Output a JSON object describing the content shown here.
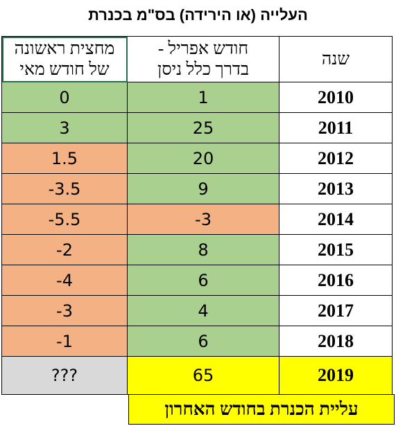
{
  "title": "העלייה (או הירידה) בס\"מ בכנרת",
  "headers": {
    "may": [
      "מחצית ראשונה",
      "של חודש מאי"
    ],
    "april": [
      "חודש אפריל -",
      "בדרך כלל ניסן"
    ],
    "year": "שנה"
  },
  "rows": [
    {
      "year": "2010",
      "april": "1",
      "may": "0",
      "april_color": "green",
      "may_color": "green"
    },
    {
      "year": "2011",
      "april": "25",
      "may": "3",
      "april_color": "green",
      "may_color": "green"
    },
    {
      "year": "2012",
      "april": "20",
      "may": "1.5",
      "april_color": "green",
      "may_color": "orange"
    },
    {
      "year": "2013",
      "april": "9",
      "may": "-3.5",
      "april_color": "green",
      "may_color": "orange"
    },
    {
      "year": "2014",
      "april": "-3",
      "may": "-5.5",
      "april_color": "orange",
      "may_color": "orange"
    },
    {
      "year": "2015",
      "april": "8",
      "may": "-2",
      "april_color": "green",
      "may_color": "orange"
    },
    {
      "year": "2016",
      "april": "6",
      "may": "-4",
      "april_color": "green",
      "may_color": "orange"
    },
    {
      "year": "2017",
      "april": "4",
      "may": "-3",
      "april_color": "green",
      "may_color": "orange"
    },
    {
      "year": "2018",
      "april": "6",
      "may": "-1",
      "april_color": "green",
      "may_color": "orange"
    }
  ],
  "last_row": {
    "year": "2019",
    "april": "65",
    "may": "???"
  },
  "footer": "עליית הכנרת בחודש האחרון",
  "colors": {
    "green": "#a9d08e",
    "orange": "#f4b183",
    "yellow": "#ffff00",
    "gray": "#d9d9d9",
    "selection": "#1f7145"
  }
}
